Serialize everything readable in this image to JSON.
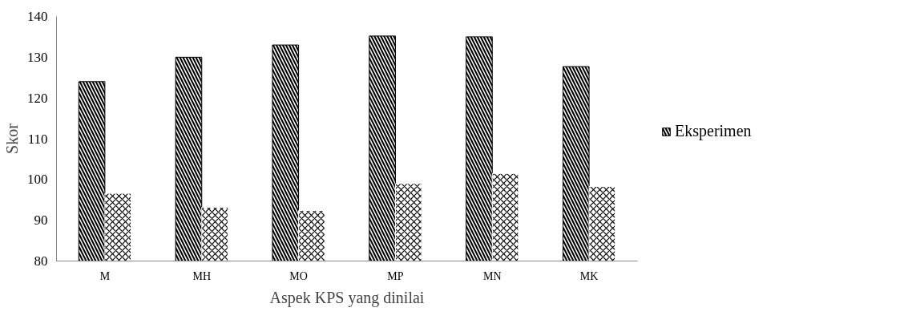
{
  "chart_data": {
    "type": "bar",
    "xlabel": "Aspek KPS yang dinilai",
    "ylabel": "Skor",
    "categories": [
      "M",
      "MH",
      "MO",
      "MP",
      "MN",
      "MK"
    ],
    "series": [
      {
        "name": "Eksperimen",
        "color": "#000000",
        "values": [
          124,
          130,
          133,
          135.2,
          135,
          127.7
        ]
      },
      {
        "color": "#ffffff",
        "values": [
          96.6,
          93.2,
          92.4,
          99,
          101.5,
          98.3
        ]
      }
    ],
    "ylim": [
      80,
      140
    ],
    "yticks": [
      80,
      90,
      100,
      110,
      120,
      130,
      140
    ],
    "grid": false,
    "legend": "right"
  }
}
